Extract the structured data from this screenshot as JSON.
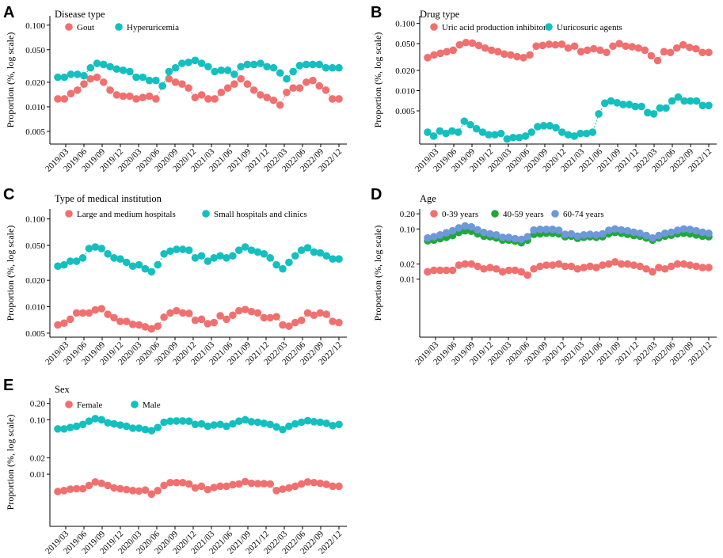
{
  "figure": {
    "colors": {
      "red": "#F07070",
      "teal": "#14BFBF",
      "green": "#1FA83A",
      "blue": "#6E98D8"
    },
    "x_tick_labels": [
      "2019/03",
      "2019/06",
      "2019/09",
      "2019/12",
      "2020/03",
      "2020/06",
      "2020/09",
      "2020/12",
      "2021/03",
      "2021/06",
      "2021/09",
      "2021/12",
      "2022/03",
      "2022/06",
      "2022/09",
      "2022/12"
    ]
  },
  "chart_data": [
    {
      "panel": "A",
      "type": "scatter",
      "title": "Disease type",
      "ylabel": "Proportion (%, log scale)",
      "yscale": "log",
      "ylim": [
        0.0035,
        0.13
      ],
      "yticks": [
        0.005,
        0.01,
        0.02,
        0.05,
        0.1
      ],
      "ytick_labels": [
        "0.005",
        "0.010",
        "0.020",
        "0.050",
        "0.100"
      ],
      "legend": [
        "Gout",
        "Hyperuricemia"
      ],
      "series": [
        {
          "name": "Gout",
          "color": "red",
          "values": [
            0.0125,
            0.0125,
            0.0145,
            0.016,
            0.019,
            0.022,
            0.023,
            0.02,
            0.016,
            0.014,
            0.0135,
            0.0135,
            0.0125,
            0.013,
            0.0135,
            0.0125,
            0.018,
            0.022,
            0.02,
            0.019,
            0.017,
            0.013,
            0.014,
            0.0125,
            0.0125,
            0.015,
            0.017,
            0.019,
            0.022,
            0.019,
            0.016,
            0.014,
            0.013,
            0.012,
            0.0105,
            0.015,
            0.017,
            0.017,
            0.02,
            0.021,
            0.018,
            0.016,
            0.0125,
            0.0125
          ]
        },
        {
          "name": "Hyperuricemia",
          "color": "teal",
          "values": [
            0.023,
            0.023,
            0.025,
            0.025,
            0.024,
            0.03,
            0.034,
            0.033,
            0.031,
            0.029,
            0.028,
            0.027,
            0.023,
            0.023,
            0.021,
            0.021,
            0.018,
            0.027,
            0.03,
            0.034,
            0.035,
            0.037,
            0.034,
            0.031,
            0.027,
            0.028,
            0.028,
            0.025,
            0.031,
            0.033,
            0.033,
            0.034,
            0.031,
            0.03,
            0.026,
            0.022,
            0.027,
            0.032,
            0.033,
            0.033,
            0.033,
            0.03,
            0.03,
            0.03
          ]
        }
      ]
    },
    {
      "panel": "B",
      "type": "scatter",
      "title": "Drug type",
      "ylabel": "Proportion (%, log scale)",
      "yscale": "log",
      "ylim": [
        0.0016,
        0.13
      ],
      "yticks": [
        0.005,
        0.01,
        0.02,
        0.05,
        0.1
      ],
      "ytick_labels": [
        "0.005",
        "0.010",
        "0.020",
        "0.050",
        "0.100"
      ],
      "legend": [
        "Uric acid production inhibitors",
        "Uuricosuric agents"
      ],
      "series": [
        {
          "name": "Uric acid production inhibitors",
          "color": "red",
          "values": [
            0.031,
            0.034,
            0.036,
            0.038,
            0.04,
            0.048,
            0.052,
            0.051,
            0.047,
            0.043,
            0.04,
            0.038,
            0.035,
            0.034,
            0.032,
            0.031,
            0.034,
            0.046,
            0.047,
            0.049,
            0.048,
            0.049,
            0.043,
            0.046,
            0.038,
            0.04,
            0.042,
            0.04,
            0.037,
            0.046,
            0.05,
            0.046,
            0.045,
            0.043,
            0.04,
            0.033,
            0.028,
            0.038,
            0.037,
            0.043,
            0.048,
            0.044,
            0.042,
            0.037,
            0.037
          ]
        },
        {
          "name": "Uuricosuric agents",
          "color": "teal",
          "values": [
            0.0024,
            0.0021,
            0.0025,
            0.0023,
            0.0025,
            0.0024,
            0.0035,
            0.0031,
            0.0027,
            0.0024,
            0.0022,
            0.0022,
            0.0023,
            0.0019,
            0.002,
            0.002,
            0.0021,
            0.0024,
            0.0029,
            0.003,
            0.003,
            0.0028,
            0.0024,
            0.0022,
            0.0021,
            0.0023,
            0.0023,
            0.0024,
            0.0045,
            0.0065,
            0.007,
            0.0066,
            0.0062,
            0.0062,
            0.0058,
            0.0058,
            0.0047,
            0.0045,
            0.0055,
            0.0055,
            0.007,
            0.008,
            0.007,
            0.007,
            0.007,
            0.006,
            0.006
          ]
        }
      ]
    },
    {
      "panel": "C",
      "type": "scatter",
      "title": "Type of medical institution",
      "ylabel": "Proportion (%, log scale)",
      "yscale": "log",
      "ylim": [
        0.0045,
        0.13
      ],
      "yticks": [
        0.005,
        0.01,
        0.02,
        0.05,
        0.1
      ],
      "ytick_labels": [
        "0.005",
        "0.010",
        "0.020",
        "0.050",
        "0.100"
      ],
      "legend": [
        "Large and medium hospitals",
        "Small hospitals and clinics"
      ],
      "series": [
        {
          "name": "Large and medium hospitals",
          "color": "red",
          "values": [
            0.0062,
            0.0065,
            0.0072,
            0.0085,
            0.0085,
            0.0085,
            0.0092,
            0.0095,
            0.0082,
            0.0075,
            0.0068,
            0.0068,
            0.0063,
            0.0062,
            0.0059,
            0.0056,
            0.006,
            0.0076,
            0.0085,
            0.009,
            0.0085,
            0.0084,
            0.007,
            0.0072,
            0.0064,
            0.0066,
            0.0079,
            0.0072,
            0.008,
            0.009,
            0.0093,
            0.0088,
            0.0085,
            0.0075,
            0.0075,
            0.0077,
            0.0062,
            0.006,
            0.0066,
            0.007,
            0.0085,
            0.008,
            0.0085,
            0.0082,
            0.0068,
            0.0066
          ]
        },
        {
          "name": "Small hospitals and clinics",
          "color": "teal",
          "values": [
            0.029,
            0.03,
            0.033,
            0.033,
            0.036,
            0.046,
            0.048,
            0.046,
            0.04,
            0.036,
            0.035,
            0.032,
            0.029,
            0.03,
            0.027,
            0.025,
            0.03,
            0.04,
            0.043,
            0.045,
            0.045,
            0.044,
            0.036,
            0.038,
            0.033,
            0.036,
            0.038,
            0.036,
            0.038,
            0.044,
            0.048,
            0.044,
            0.042,
            0.04,
            0.036,
            0.03,
            0.027,
            0.032,
            0.038,
            0.044,
            0.047,
            0.042,
            0.041,
            0.038,
            0.035,
            0.035
          ]
        }
      ]
    },
    {
      "panel": "D",
      "type": "scatter",
      "title": "Age",
      "ylabel": "Proportion (%, log scale)",
      "yscale": "log",
      "ylim": [
        0.0007,
        0.25
      ],
      "yticks": [
        0.01,
        0.02,
        0.1,
        0.2
      ],
      "ytick_labels": [
        "0.01",
        "0.02",
        "0.10",
        "0.20"
      ],
      "legend": [
        "0-39 years",
        "40-59 years",
        "60-74 years"
      ],
      "series": [
        {
          "name": "0-39 years",
          "color": "red",
          "values": [
            0.014,
            0.015,
            0.015,
            0.015,
            0.015,
            0.019,
            0.02,
            0.02,
            0.018,
            0.016,
            0.017,
            0.016,
            0.014,
            0.015,
            0.015,
            0.014,
            0.012,
            0.016,
            0.018,
            0.019,
            0.019,
            0.02,
            0.018,
            0.018,
            0.016,
            0.017,
            0.018,
            0.017,
            0.019,
            0.02,
            0.022,
            0.02,
            0.02,
            0.019,
            0.018,
            0.016,
            0.014,
            0.017,
            0.016,
            0.018,
            0.02,
            0.02,
            0.019,
            0.018,
            0.017,
            0.017
          ]
        },
        {
          "name": "40-59 years",
          "color": "green",
          "values": [
            0.058,
            0.06,
            0.064,
            0.068,
            0.074,
            0.085,
            0.092,
            0.09,
            0.08,
            0.072,
            0.07,
            0.066,
            0.06,
            0.06,
            0.057,
            0.053,
            0.06,
            0.078,
            0.08,
            0.082,
            0.082,
            0.08,
            0.07,
            0.072,
            0.065,
            0.068,
            0.07,
            0.068,
            0.07,
            0.08,
            0.085,
            0.082,
            0.078,
            0.074,
            0.072,
            0.066,
            0.06,
            0.066,
            0.072,
            0.075,
            0.08,
            0.082,
            0.08,
            0.076,
            0.072,
            0.07
          ]
        },
        {
          "name": "60-74 years",
          "color": "blue",
          "values": [
            0.066,
            0.07,
            0.076,
            0.084,
            0.092,
            0.105,
            0.115,
            0.11,
            0.096,
            0.085,
            0.08,
            0.076,
            0.068,
            0.068,
            0.064,
            0.062,
            0.07,
            0.095,
            0.098,
            0.098,
            0.098,
            0.094,
            0.078,
            0.08,
            0.072,
            0.076,
            0.078,
            0.076,
            0.08,
            0.094,
            0.1,
            0.096,
            0.092,
            0.086,
            0.082,
            0.074,
            0.066,
            0.074,
            0.082,
            0.086,
            0.094,
            0.1,
            0.098,
            0.092,
            0.086,
            0.082
          ]
        }
      ]
    },
    {
      "panel": "E",
      "type": "scatter",
      "title": "Sex",
      "ylabel": "Proportion (%, log scale)",
      "yscale": "log",
      "ylim": [
        0.0011,
        0.25
      ],
      "yticks": [
        0.01,
        0.02,
        0.1,
        0.2
      ],
      "ytick_labels": [
        "0.01",
        "0.02",
        "0.10",
        "0.20"
      ],
      "legend": [
        "Female",
        "Male"
      ],
      "series": [
        {
          "name": "Female",
          "color": "red",
          "values": [
            0.0048,
            0.005,
            0.0053,
            0.0054,
            0.0054,
            0.0062,
            0.0072,
            0.0068,
            0.0062,
            0.0056,
            0.0054,
            0.0052,
            0.005,
            0.0049,
            0.0051,
            0.0043,
            0.005,
            0.0062,
            0.007,
            0.007,
            0.007,
            0.0066,
            0.0056,
            0.006,
            0.0052,
            0.0057,
            0.006,
            0.006,
            0.0064,
            0.0066,
            0.0073,
            0.0068,
            0.0067,
            0.0067,
            0.0066,
            0.005,
            0.0053,
            0.0056,
            0.006,
            0.0066,
            0.0072,
            0.007,
            0.0068,
            0.0065,
            0.006,
            0.006
          ]
        },
        {
          "name": "Male",
          "color": "teal",
          "values": [
            0.068,
            0.068,
            0.072,
            0.076,
            0.082,
            0.094,
            0.105,
            0.1,
            0.088,
            0.084,
            0.08,
            0.076,
            0.07,
            0.07,
            0.066,
            0.063,
            0.072,
            0.09,
            0.094,
            0.095,
            0.095,
            0.094,
            0.082,
            0.084,
            0.076,
            0.08,
            0.082,
            0.076,
            0.084,
            0.094,
            0.1,
            0.092,
            0.09,
            0.086,
            0.082,
            0.074,
            0.066,
            0.076,
            0.084,
            0.09,
            0.096,
            0.092,
            0.09,
            0.086,
            0.078,
            0.082
          ]
        }
      ]
    }
  ]
}
